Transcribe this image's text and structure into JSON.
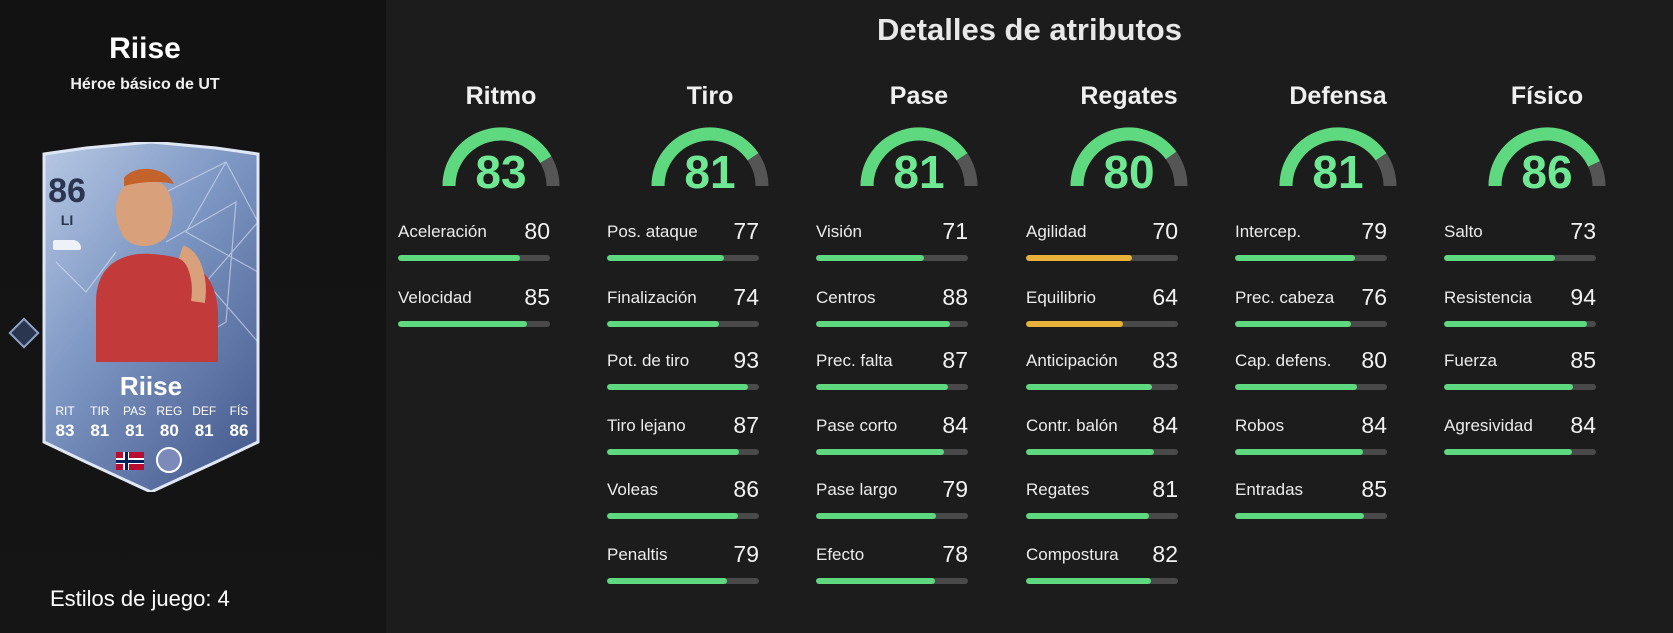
{
  "player": {
    "name": "Riise",
    "subtitle": "Héroe básico de UT",
    "card": {
      "rating": "86",
      "position": "LI",
      "name": "Riise",
      "stats": [
        {
          "label": "RIT",
          "value": "83"
        },
        {
          "label": "TIR",
          "value": "81"
        },
        {
          "label": "PAS",
          "value": "81"
        },
        {
          "label": "REG",
          "value": "80"
        },
        {
          "label": "DEF",
          "value": "81"
        },
        {
          "label": "FÍS",
          "value": "86"
        }
      ]
    },
    "playstyles_label": "Estilos de juego: 4"
  },
  "details": {
    "title": "Detalles de atributos",
    "categories": [
      {
        "key": "ritmo",
        "name": "Ritmo",
        "value": 83,
        "attributes": [
          {
            "label": "Aceleración",
            "value": 80
          },
          {
            "label": "Velocidad",
            "value": 85
          }
        ]
      },
      {
        "key": "tiro",
        "name": "Tiro",
        "value": 81,
        "attributes": [
          {
            "label": "Pos. ataque",
            "value": 77
          },
          {
            "label": "Finalización",
            "value": 74
          },
          {
            "label": "Pot. de tiro",
            "value": 93
          },
          {
            "label": "Tiro lejano",
            "value": 87
          },
          {
            "label": "Voleas",
            "value": 86
          },
          {
            "label": "Penaltis",
            "value": 79
          }
        ]
      },
      {
        "key": "pase",
        "name": "Pase",
        "value": 81,
        "attributes": [
          {
            "label": "Visión",
            "value": 71
          },
          {
            "label": "Centros",
            "value": 88
          },
          {
            "label": "Prec. falta",
            "value": 87
          },
          {
            "label": "Pase corto",
            "value": 84
          },
          {
            "label": "Pase largo",
            "value": 79
          },
          {
            "label": "Efecto",
            "value": 78
          }
        ]
      },
      {
        "key": "regates",
        "name": "Regates",
        "value": 80,
        "attributes": [
          {
            "label": "Agilidad",
            "value": 70
          },
          {
            "label": "Equilibrio",
            "value": 64
          },
          {
            "label": "Anticipación",
            "value": 83
          },
          {
            "label": "Contr. balón",
            "value": 84
          },
          {
            "label": "Regates",
            "value": 81
          },
          {
            "label": "Compostura",
            "value": 82
          }
        ]
      },
      {
        "key": "defensa",
        "name": "Defensa",
        "value": 81,
        "attributes": [
          {
            "label": "Intercep.",
            "value": 79
          },
          {
            "label": "Prec. cabeza",
            "value": 76
          },
          {
            "label": "Cap. defens.",
            "value": 80
          },
          {
            "label": "Robos",
            "value": 84
          },
          {
            "label": "Entradas",
            "value": 85
          }
        ]
      },
      {
        "key": "fisico",
        "name": "Físico",
        "value": 86,
        "attributes": [
          {
            "label": "Salto",
            "value": 73
          },
          {
            "label": "Resistencia",
            "value": 94
          },
          {
            "label": "Fuerza",
            "value": 85
          },
          {
            "label": "Agresividad",
            "value": 84
          }
        ]
      }
    ]
  },
  "colors": {
    "high": "#5fd97f",
    "mid": "#e8b23a",
    "track": "#4a4a4a",
    "gauge_value": "#6ee893"
  }
}
